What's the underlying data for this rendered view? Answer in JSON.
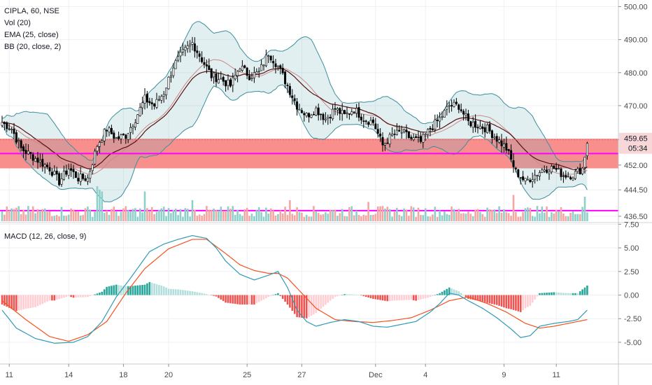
{
  "header": {
    "symbol_line": "CIPLA, 60, NSE",
    "indicators": [
      "Vol (20)",
      "EMA (25, close)",
      "BB (20, close, 2)"
    ],
    "macd_label": "MACD (12, 26, close, 9)"
  },
  "colors": {
    "up": "#26a69a",
    "down": "#000000",
    "wick": "#000000",
    "bb": "#3d8e9c",
    "bb_fill": "rgba(120,180,190,0.22)",
    "ema": "#5a1010",
    "zone": "#f88f8d",
    "magenta": "#ff00ff",
    "vol_up": "#8ecfc9",
    "vol_down": "#f4a6a3",
    "macd_line": "#2f9bb4",
    "signal_line": "#f4511e",
    "hist_up_strong": "#26a69a",
    "hist_up_weak": "#b2dfdb",
    "hist_down_strong": "#ef5350",
    "hist_down_weak": "#ffcdd2"
  },
  "chart_data": [
    {
      "type": "candlestick",
      "panel": "price",
      "y_ticks": [
        "500.00",
        "490.00",
        "480.00",
        "470.00",
        "459.65",
        "452.00",
        "444.50",
        "436.50"
      ],
      "ylim": [
        435.0,
        502.0
      ],
      "zone": [
        451.0,
        460.0
      ],
      "levels": [
        455.5,
        438.2
      ],
      "last_price_label": "459.65",
      "countdown_label": "05:34",
      "anchors_close": [
        [
          0,
          465
        ],
        [
          4,
          463
        ],
        [
          8,
          457
        ],
        [
          12,
          455
        ],
        [
          16,
          453
        ],
        [
          20,
          451
        ],
        [
          24,
          447
        ],
        [
          28,
          451
        ],
        [
          32,
          448
        ],
        [
          36,
          448
        ],
        [
          40,
          458
        ],
        [
          44,
          463
        ],
        [
          48,
          460
        ],
        [
          52,
          461
        ],
        [
          56,
          466
        ],
        [
          60,
          472
        ],
        [
          64,
          470
        ],
        [
          68,
          474
        ],
        [
          72,
          482
        ],
        [
          76,
          486
        ],
        [
          80,
          489
        ],
        [
          84,
          484
        ],
        [
          88,
          479
        ],
        [
          92,
          478
        ],
        [
          96,
          476
        ],
        [
          100,
          482
        ],
        [
          104,
          479
        ],
        [
          108,
          480
        ],
        [
          112,
          486
        ],
        [
          116,
          482
        ],
        [
          120,
          476
        ],
        [
          124,
          470
        ],
        [
          128,
          467
        ],
        [
          132,
          469
        ],
        [
          136,
          466
        ],
        [
          140,
          469
        ],
        [
          144,
          467
        ],
        [
          148,
          469
        ],
        [
          152,
          466
        ],
        [
          156,
          465
        ],
        [
          160,
          458
        ],
        [
          164,
          461
        ],
        [
          168,
          462
        ],
        [
          172,
          460
        ],
        [
          176,
          459
        ],
        [
          180,
          463
        ],
        [
          184,
          466
        ],
        [
          188,
          470
        ],
        [
          192,
          470
        ],
        [
          196,
          465
        ],
        [
          200,
          464
        ],
        [
          204,
          463
        ],
        [
          208,
          460
        ],
        [
          212,
          457
        ],
        [
          216,
          450
        ],
        [
          220,
          447
        ],
        [
          224,
          449
        ],
        [
          228,
          451
        ],
        [
          232,
          451
        ],
        [
          236,
          449
        ],
        [
          240,
          449
        ],
        [
          244,
          451
        ],
        [
          246,
          459
        ]
      ],
      "x_ticks": [
        {
          "label": "11",
          "i": 3
        },
        {
          "label": "14",
          "i": 28
        },
        {
          "label": "18",
          "i": 51
        },
        {
          "label": "20",
          "i": 70
        },
        {
          "label": "25",
          "i": 103
        },
        {
          "label": "27",
          "i": 126
        },
        {
          "label": "Dec",
          "i": 157
        },
        {
          "label": "4",
          "i": 178
        },
        {
          "label": "9",
          "i": 211
        },
        {
          "label": "11",
          "i": 233
        }
      ]
    },
    {
      "type": "bar",
      "panel": "volume",
      "series_name": "Vol (20)",
      "spikes": [
        [
          40,
          1.0
        ],
        [
          41,
          0.9
        ],
        [
          42,
          0.85
        ],
        [
          60,
          0.85
        ],
        [
          80,
          0.6
        ],
        [
          121,
          0.6
        ],
        [
          154,
          0.55
        ],
        [
          215,
          0.75
        ],
        [
          245,
          0.7
        ]
      ]
    },
    {
      "type": "line",
      "panel": "macd",
      "y_ticks": [
        "7.50",
        "5.00",
        "2.50",
        "0.00",
        "-2.50",
        "-5.00"
      ],
      "ylim": [
        -7.3,
        7.6
      ],
      "macd_anchors": [
        [
          0,
          -1.6
        ],
        [
          6,
          -3.5
        ],
        [
          14,
          -4.6
        ],
        [
          22,
          -5.1
        ],
        [
          30,
          -5.0
        ],
        [
          36,
          -4.4
        ],
        [
          42,
          -2.8
        ],
        [
          48,
          -0.2
        ],
        [
          54,
          1.8
        ],
        [
          58,
          3.2
        ],
        [
          62,
          4.6
        ],
        [
          68,
          5.4
        ],
        [
          74,
          5.9
        ],
        [
          80,
          6.3
        ],
        [
          86,
          6.0
        ],
        [
          90,
          5.0
        ],
        [
          94,
          3.6
        ],
        [
          100,
          2.2
        ],
        [
          106,
          1.6
        ],
        [
          112,
          2.1
        ],
        [
          116,
          2.5
        ],
        [
          120,
          0.8
        ],
        [
          124,
          -1.6
        ],
        [
          128,
          -2.8
        ],
        [
          132,
          -3.3
        ],
        [
          138,
          -2.9
        ],
        [
          144,
          -2.6
        ],
        [
          150,
          -2.8
        ],
        [
          156,
          -3.3
        ],
        [
          162,
          -3.4
        ],
        [
          168,
          -3.1
        ],
        [
          174,
          -2.8
        ],
        [
          180,
          -1.8
        ],
        [
          184,
          -0.9
        ],
        [
          188,
          0.2
        ],
        [
          192,
          0.0
        ],
        [
          196,
          -0.6
        ],
        [
          202,
          -1.4
        ],
        [
          208,
          -2.4
        ],
        [
          214,
          -3.6
        ],
        [
          218,
          -4.5
        ],
        [
          222,
          -4.3
        ],
        [
          226,
          -3.3
        ],
        [
          232,
          -3.0
        ],
        [
          238,
          -2.8
        ],
        [
          242,
          -2.6
        ],
        [
          246,
          -1.6
        ]
      ],
      "signal_anchors": [
        [
          0,
          -0.6
        ],
        [
          10,
          -2.6
        ],
        [
          20,
          -4.4
        ],
        [
          28,
          -4.9
        ],
        [
          36,
          -4.2
        ],
        [
          44,
          -2.8
        ],
        [
          52,
          0.2
        ],
        [
          60,
          2.8
        ],
        [
          70,
          4.9
        ],
        [
          80,
          5.9
        ],
        [
          86,
          5.9
        ],
        [
          94,
          4.4
        ],
        [
          100,
          3.2
        ],
        [
          106,
          2.6
        ],
        [
          112,
          2.3
        ],
        [
          116,
          2.3
        ],
        [
          120,
          1.8
        ],
        [
          126,
          0.2
        ],
        [
          132,
          -1.4
        ],
        [
          140,
          -2.6
        ],
        [
          148,
          -2.8
        ],
        [
          156,
          -2.9
        ],
        [
          164,
          -2.7
        ],
        [
          172,
          -2.4
        ],
        [
          180,
          -1.6
        ],
        [
          188,
          -0.6
        ],
        [
          196,
          -0.2
        ],
        [
          204,
          -0.9
        ],
        [
          212,
          -1.8
        ],
        [
          220,
          -3.0
        ],
        [
          226,
          -3.5
        ],
        [
          232,
          -3.3
        ],
        [
          240,
          -2.9
        ],
        [
          246,
          -2.6
        ]
      ]
    }
  ]
}
